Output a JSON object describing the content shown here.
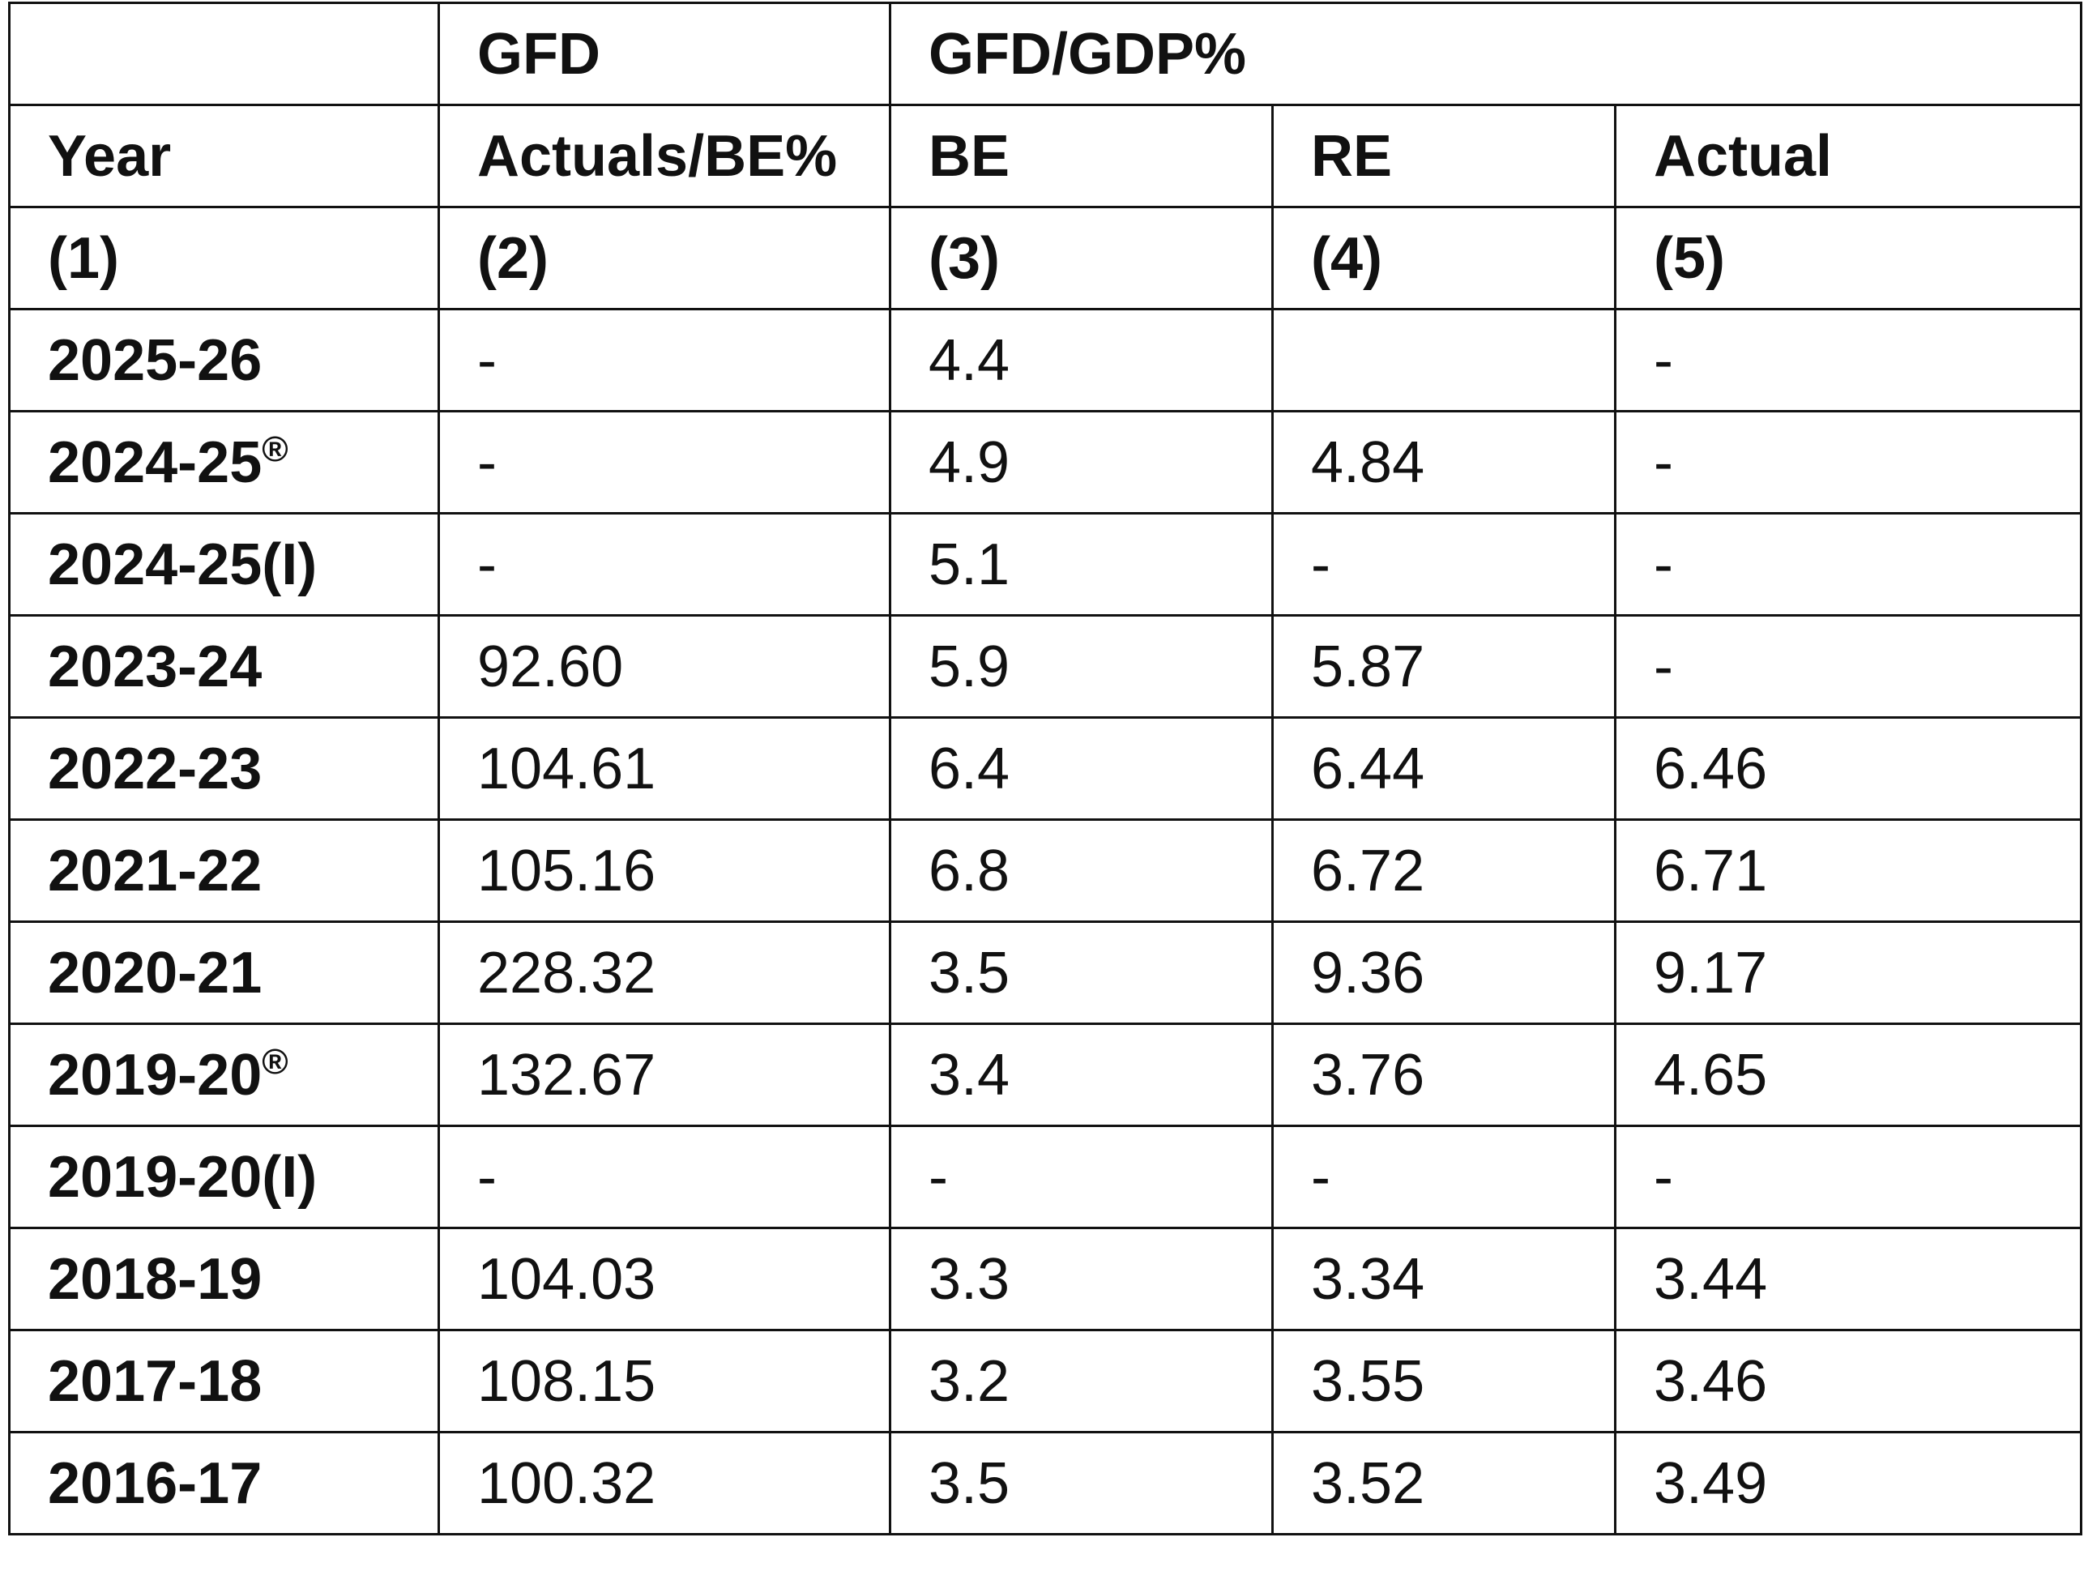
{
  "header": {
    "row1": {
      "col1": "",
      "col2": "GFD",
      "group": "GFD/GDP%"
    },
    "row2": {
      "col1": "Year",
      "col2": "Actuals/BE%",
      "col3": "BE",
      "col4": "RE",
      "col5": "Actual"
    },
    "row3": {
      "col1": "(1)",
      "col2": "(2)",
      "col3": "(3)",
      "col4": "(4)",
      "col5": "(5)"
    }
  },
  "rows": [
    {
      "year": "2025-26",
      "mark": "",
      "actuals_be": "-",
      "be": "4.4",
      "re": "",
      "actual": "-"
    },
    {
      "year": "2024-25",
      "mark": "®",
      "actuals_be": "-",
      "be": "4.9",
      "re": "4.84",
      "actual": "-"
    },
    {
      "year": "2024-25(I)",
      "mark": "",
      "actuals_be": "-",
      "be": "5.1",
      "re": "-",
      "actual": "-"
    },
    {
      "year": "2023-24",
      "mark": "",
      "actuals_be": "92.60",
      "be": "5.9",
      "re": "5.87",
      "actual": "-"
    },
    {
      "year": "2022-23",
      "mark": "",
      "actuals_be": "104.61",
      "be": "6.4",
      "re": "6.44",
      "actual": "6.46"
    },
    {
      "year": "2021-22",
      "mark": "",
      "actuals_be": "105.16",
      "be": "6.8",
      "re": "6.72",
      "actual": "6.71"
    },
    {
      "year": "2020-21",
      "mark": "",
      "actuals_be": "228.32",
      "be": "3.5",
      "re": "9.36",
      "actual": "9.17"
    },
    {
      "year": "2019-20",
      "mark": "®",
      "actuals_be": "132.67",
      "be": "3.4",
      "re": "3.76",
      "actual": "4.65"
    },
    {
      "year": "2019-20(I)",
      "mark": "",
      "actuals_be": "-",
      "be": "-",
      "re": "-",
      "actual": "-"
    },
    {
      "year": "2018-19",
      "mark": "",
      "actuals_be": "104.03",
      "be": "3.3",
      "re": "3.34",
      "actual": "3.44"
    },
    {
      "year": "2017-18",
      "mark": "",
      "actuals_be": "108.15",
      "be": "3.2",
      "re": "3.55",
      "actual": "3.46"
    },
    {
      "year": "2016-17",
      "mark": "",
      "actuals_be": "100.32",
      "be": "3.5",
      "re": "3.52",
      "actual": "3.49"
    }
  ]
}
